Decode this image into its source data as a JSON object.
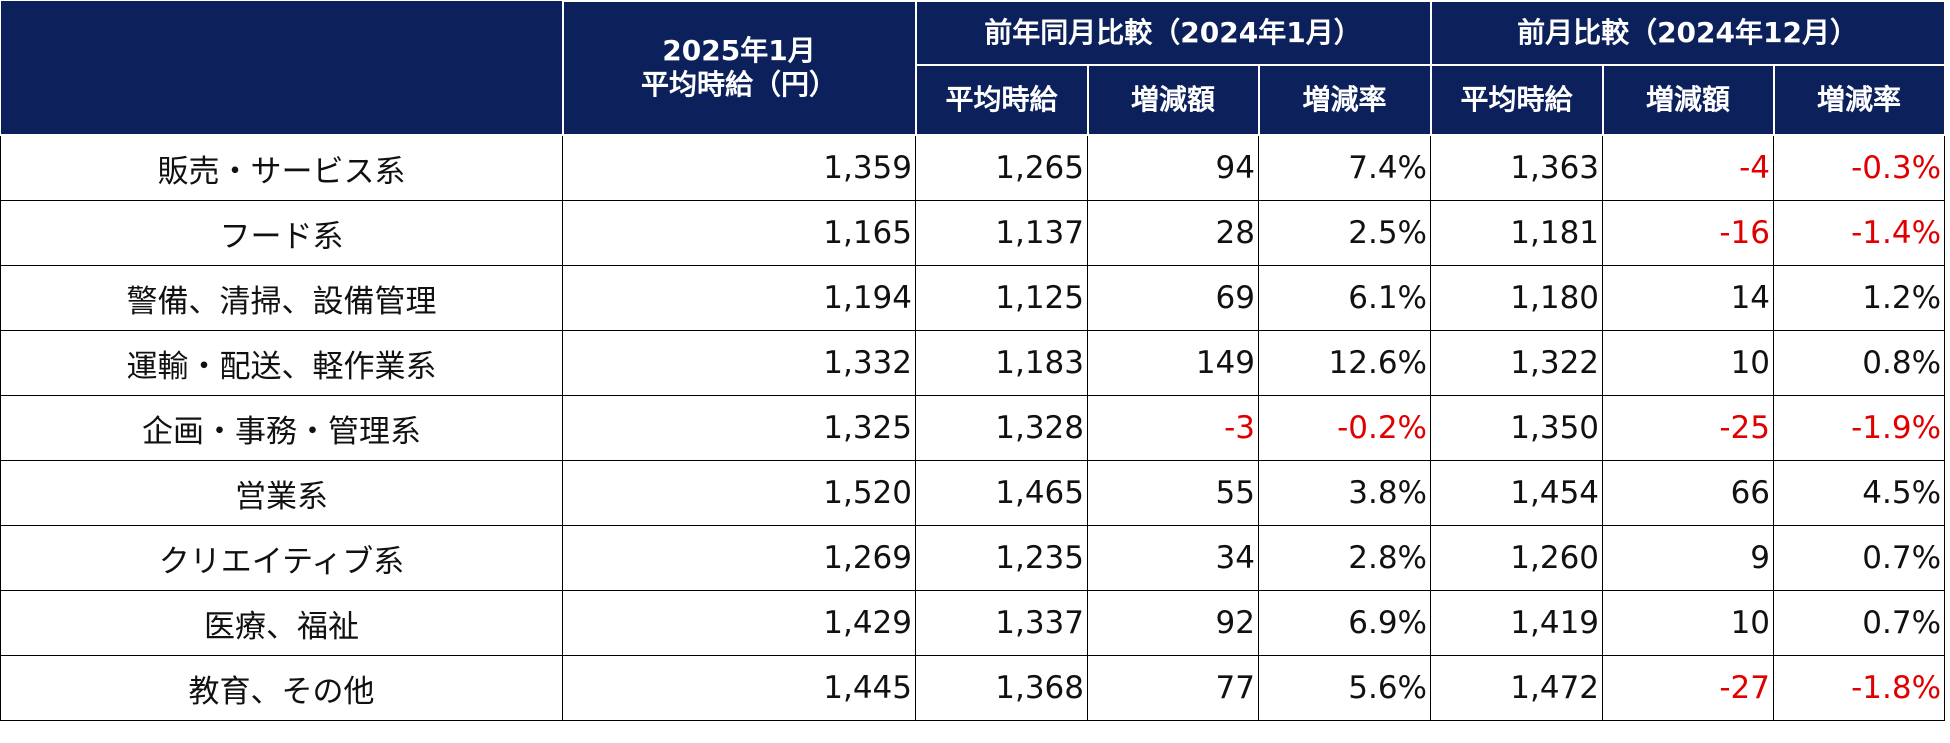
{
  "header": {
    "base_title": [
      "2025年1月",
      "平均時給（円）"
    ],
    "group_titles": [
      "前年同月比較（2024年1月）",
      "前月比較（2024年12月）"
    ],
    "sub_titles": [
      "平均時給",
      "増減額",
      "増減率",
      "平均時給",
      "増減額",
      "増減率"
    ]
  },
  "table": {
    "rows": [
      {
        "label": "販売・サービス系",
        "values": [
          "1,359",
          "1,265",
          "94",
          "7.4%",
          "1,363",
          "-4",
          "-0.3%"
        ]
      },
      {
        "label": "フード系",
        "values": [
          "1,165",
          "1,137",
          "28",
          "2.5%",
          "1,181",
          "-16",
          "-1.4%"
        ]
      },
      {
        "label": "警備、清掃、設備管理",
        "values": [
          "1,194",
          "1,125",
          "69",
          "6.1%",
          "1,180",
          "14",
          "1.2%"
        ]
      },
      {
        "label": "運輸・配送、軽作業系",
        "values": [
          "1,332",
          "1,183",
          "149",
          "12.6%",
          "1,322",
          "10",
          "0.8%"
        ]
      },
      {
        "label": "企画・事務・管理系",
        "values": [
          "1,325",
          "1,328",
          "-3",
          "-0.2%",
          "1,350",
          "-25",
          "-1.9%"
        ]
      },
      {
        "label": "営業系",
        "values": [
          "1,520",
          "1,465",
          "55",
          "3.8%",
          "1,454",
          "66",
          "4.5%"
        ]
      },
      {
        "label": "クリエイティブ系",
        "values": [
          "1,269",
          "1,235",
          "34",
          "2.8%",
          "1,260",
          "9",
          "0.7%"
        ]
      },
      {
        "label": "医療、福祉",
        "values": [
          "1,429",
          "1,337",
          "92",
          "6.9%",
          "1,419",
          "10",
          "0.7%"
        ]
      },
      {
        "label": "教育、その他",
        "values": [
          "1,445",
          "1,368",
          "77",
          "5.6%",
          "1,472",
          "-27",
          "-1.8%"
        ]
      }
    ]
  }
}
